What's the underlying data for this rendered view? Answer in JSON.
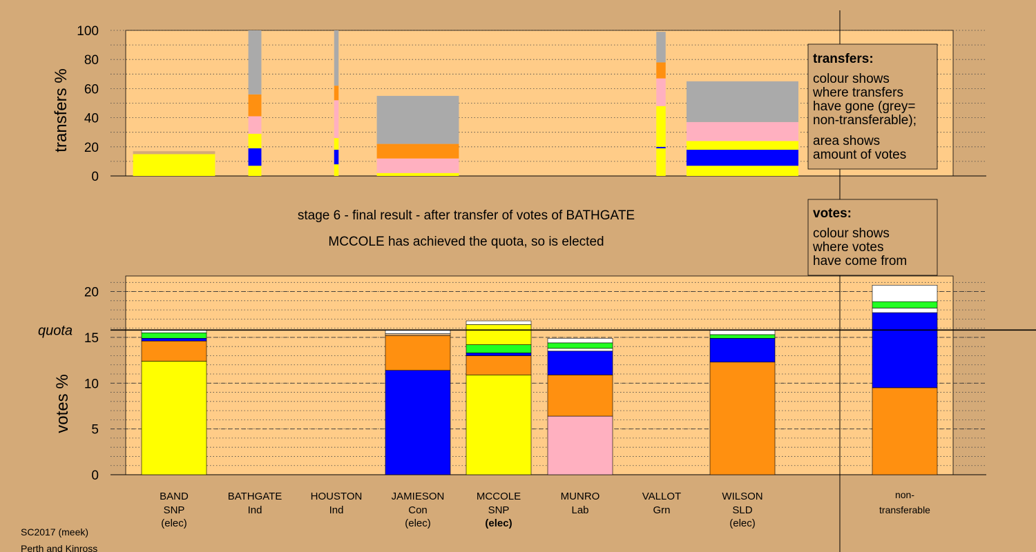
{
  "colors": {
    "background": "#d4aa78",
    "panel": "#ffcc88",
    "yellow": "#ffff00",
    "blue": "#0000ff",
    "orange": "#ff9010",
    "pink": "#ffb0c0",
    "green": "#22ff22",
    "white": "#ffffff",
    "grey": "#aaaaaa",
    "tan": "#d4aa78"
  },
  "labels": {
    "stage_title": "stage 6 - final result - after transfer of votes of BATHGATE",
    "stage_subtitle": "MCCOLE has achieved the quota, so is elected",
    "footer_line1": "SC2017 (meek)",
    "footer_line2": "Perth and Kinross",
    "quota_label": "quota",
    "transfers_legend_title": "transfers:",
    "transfers_legend_lines": [
      "colour shows",
      "where transfers",
      "have gone (grey=",
      "non-transferable);"
    ],
    "transfers_legend_lines2": [
      "area shows",
      "amount of votes"
    ],
    "votes_legend_title": "votes:",
    "votes_legend_lines": [
      "colour shows",
      "where votes",
      "have come from"
    ]
  },
  "chart_data": [
    {
      "type": "bar",
      "name": "transfers",
      "ylabel": "transfers %",
      "ylim": [
        0,
        100
      ],
      "yticks": [
        0,
        20,
        40,
        60,
        80,
        100
      ],
      "columns": [
        {
          "segments": [
            {
              "color": "yellow",
              "value": 15
            },
            {
              "color": "tan",
              "value": 2
            }
          ],
          "weight": 0.22
        },
        {
          "segments": [
            {
              "color": "yellow",
              "value": 7
            },
            {
              "color": "blue",
              "value": 12
            },
            {
              "color": "yellow",
              "value": 10
            },
            {
              "color": "pink",
              "value": 12
            },
            {
              "color": "orange",
              "value": 15
            },
            {
              "color": "grey",
              "value": 44
            }
          ],
          "weight": 0.035
        },
        {
          "segments": [
            {
              "color": "yellow",
              "value": 8
            },
            {
              "color": "blue",
              "value": 10
            },
            {
              "color": "yellow",
              "value": 8
            },
            {
              "color": "pink",
              "value": 26
            },
            {
              "color": "orange",
              "value": 10
            },
            {
              "color": "grey",
              "value": 38
            }
          ],
          "weight": 0.012
        },
        {
          "segments": [
            {
              "color": "yellow",
              "value": 2
            },
            {
              "color": "pink",
              "value": 10
            },
            {
              "color": "orange",
              "value": 10
            },
            {
              "color": "grey",
              "value": 33
            }
          ],
          "weight": 0.22
        },
        {
          "segments": [
            {
              "color": "yellow",
              "value": 19
            },
            {
              "color": "blue",
              "value": 1
            },
            {
              "color": "yellow",
              "value": 28
            },
            {
              "color": "pink",
              "value": 19
            },
            {
              "color": "orange",
              "value": 11
            },
            {
              "color": "grey",
              "value": 21
            }
          ],
          "weight": 0.025
        },
        {
          "segments": [
            {
              "color": "yellow",
              "value": 7
            },
            {
              "color": "blue",
              "value": 11
            },
            {
              "color": "yellow",
              "value": 6
            },
            {
              "color": "pink",
              "value": 13
            },
            {
              "color": "grey",
              "value": 28
            }
          ],
          "weight": 0.3
        }
      ]
    },
    {
      "type": "bar",
      "name": "votes",
      "ylabel": "votes %",
      "ylim": [
        0,
        21.7
      ],
      "yticks": [
        0,
        5,
        10,
        15,
        20
      ],
      "quota": 15.8,
      "categories": [
        {
          "name": "BAND",
          "party": "SNP",
          "status": "(elec)",
          "bold": false
        },
        {
          "name": "BATHGATE",
          "party": "Ind",
          "status": "",
          "bold": false
        },
        {
          "name": "HOUSTON",
          "party": "Ind",
          "status": "",
          "bold": false
        },
        {
          "name": "JAMIESON",
          "party": "Con",
          "status": "(elec)",
          "bold": false
        },
        {
          "name": "MCCOLE",
          "party": "SNP",
          "status": "(elec)",
          "bold": true
        },
        {
          "name": "MUNRO",
          "party": "Lab",
          "status": "",
          "bold": false
        },
        {
          "name": "VALLOT",
          "party": "Grn",
          "status": "",
          "bold": false
        },
        {
          "name": "WILSON",
          "party": "SLD",
          "status": "(elec)",
          "bold": false
        }
      ],
      "nontransferable_label": [
        "non-",
        "transferable"
      ],
      "stacks": [
        [
          {
            "color": "yellow",
            "value": 12.4
          },
          {
            "color": "orange",
            "value": 2.2
          },
          {
            "color": "blue",
            "value": 0.3
          },
          {
            "color": "green",
            "value": 0.6
          },
          {
            "color": "white",
            "value": 0.3
          }
        ],
        [],
        [],
        [
          {
            "color": "blue",
            "value": 11.4
          },
          {
            "color": "orange",
            "value": 3.8
          },
          {
            "color": "tan",
            "value": 0.2
          },
          {
            "color": "white",
            "value": 0.4
          }
        ],
        [
          {
            "color": "yellow",
            "value": 10.9
          },
          {
            "color": "orange",
            "value": 2.1
          },
          {
            "color": "blue",
            "value": 0.3
          },
          {
            "color": "green",
            "value": 0.9
          },
          {
            "color": "yellow",
            "value": 2.2
          },
          {
            "color": "white",
            "value": 0.4
          }
        ],
        [
          {
            "color": "pink",
            "value": 6.4
          },
          {
            "color": "orange",
            "value": 4.5
          },
          {
            "color": "blue",
            "value": 2.6
          },
          {
            "color": "white",
            "value": 0.3
          },
          {
            "color": "green",
            "value": 0.6
          },
          {
            "color": "white",
            "value": 0.5
          }
        ],
        [],
        [
          {
            "color": "orange",
            "value": 12.3
          },
          {
            "color": "blue",
            "value": 2.6
          },
          {
            "color": "green",
            "value": 0.4
          },
          {
            "color": "white",
            "value": 0.5
          }
        ]
      ],
      "nontransferable_stack": [
        {
          "color": "orange",
          "value": 9.5
        },
        {
          "color": "blue",
          "value": 8.2
        },
        {
          "color": "white",
          "value": 0.5
        },
        {
          "color": "green",
          "value": 0.7
        },
        {
          "color": "white",
          "value": 1.8
        }
      ]
    }
  ]
}
